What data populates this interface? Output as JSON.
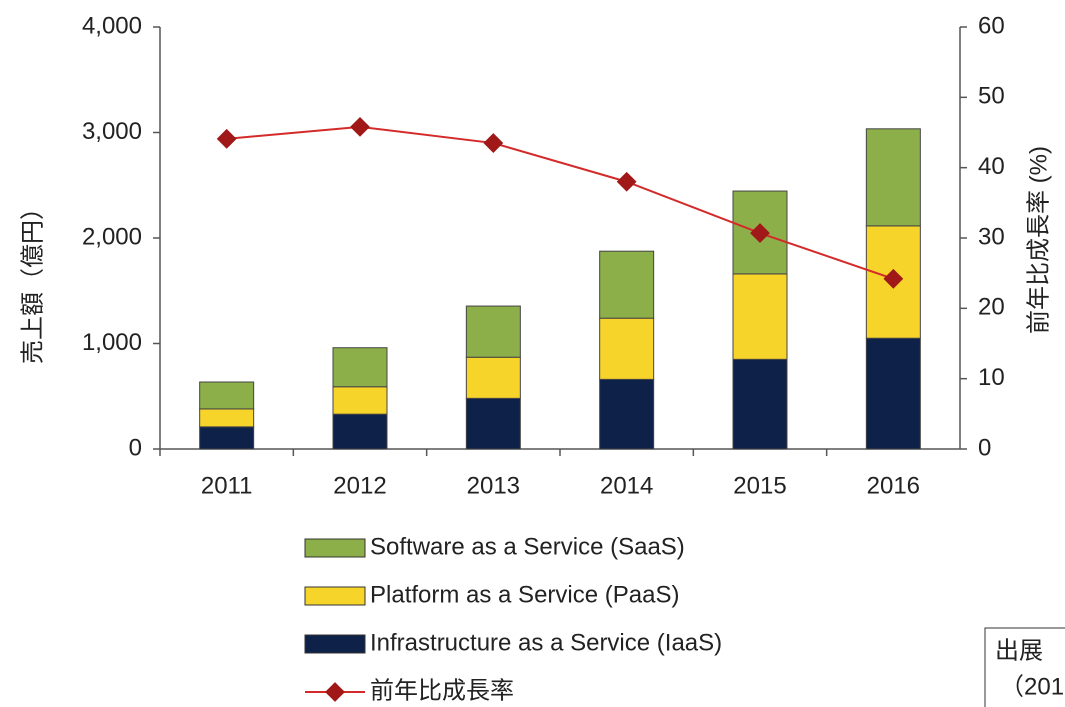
{
  "chart_data": {
    "type": "bar",
    "categories": [
      "2011",
      "2012",
      "2013",
      "2014",
      "2015",
      "2016"
    ],
    "stacked": true,
    "ylabel": "売上額（億円）",
    "y2label": "前年比成長率 (%)",
    "ylim": [
      0,
      4000
    ],
    "yticks": [
      0,
      {
        "value": 1000,
        "label": "1,000"
      },
      {
        "value": 2000,
        "label": "2,000"
      },
      {
        "value": 3000,
        "label": "3,000"
      },
      {
        "value": 4000,
        "label": "4,000"
      }
    ],
    "y2lim": [
      0,
      60
    ],
    "y2ticks": [
      0,
      10,
      20,
      30,
      40,
      50,
      60
    ],
    "series": [
      {
        "name": "Infrastructure as a Service (IaaS)",
        "color": "#0d2149",
        "values": [
          210,
          330,
          480,
          660,
          850,
          1050
        ]
      },
      {
        "name": "Platform as a Service (PaaS)",
        "color": "#f7d42a",
        "values": [
          170,
          260,
          390,
          580,
          810,
          1065
        ]
      },
      {
        "name": "Software as a Service (SaaS)",
        "color": "#8caf4a",
        "values": [
          255,
          370,
          485,
          635,
          785,
          920
        ]
      },
      {
        "name": "前年比成長率",
        "color": "#d42a2a",
        "type": "line",
        "axis": "y2",
        "values": [
          44.1,
          45.8,
          43.5,
          38.0,
          30.7,
          24.2
        ]
      }
    ],
    "annotations": [
      "出展",
      "（201"
    ]
  }
}
